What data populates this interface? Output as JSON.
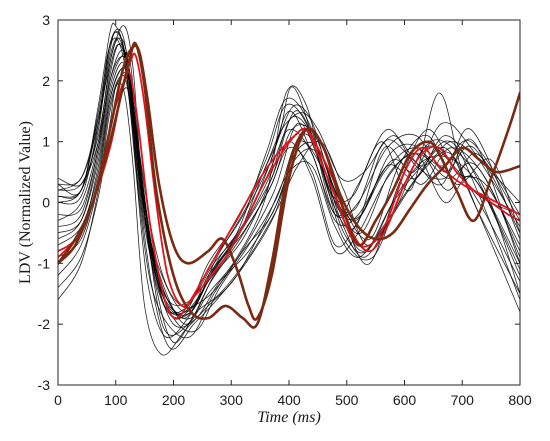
{
  "chart_data": {
    "type": "line",
    "title": "",
    "xlabel": "Time (ms)",
    "ylabel": "LDV (Normalized Value)",
    "xlim": [
      0,
      800
    ],
    "ylim": [
      -3,
      3
    ],
    "xticks": [
      0,
      100,
      200,
      300,
      400,
      500,
      600,
      700,
      800
    ],
    "yticks": [
      -3,
      -2,
      -1,
      0,
      1,
      2,
      3
    ],
    "grid": false,
    "legend": "none",
    "colors": {
      "background_traces": "#000000",
      "highlight_red": "#e0141c",
      "highlight_brown": "#7a2a12"
    },
    "series": [
      {
        "style": "black",
        "x": [
          0,
          40,
          70,
          90,
          110,
          125,
          140,
          160,
          190,
          230,
          270,
          320,
          370,
          400,
          440,
          480,
          520,
          580,
          630,
          680,
          740,
          800
        ],
        "y": [
          0.1,
          0.2,
          1.2,
          2.6,
          2.8,
          2.0,
          0.6,
          -0.8,
          -1.7,
          -1.8,
          -1.1,
          -0.4,
          0.6,
          1.2,
          0.8,
          -0.3,
          -0.2,
          0.7,
          0.3,
          0.9,
          0.4,
          -0.9
        ]
      },
      {
        "style": "black",
        "x": [
          0,
          40,
          70,
          90,
          105,
          120,
          135,
          160,
          190,
          230,
          270,
          320,
          370,
          410,
          450,
          490,
          540,
          590,
          640,
          690,
          750,
          800
        ],
        "y": [
          -0.3,
          0.0,
          1.0,
          2.3,
          2.7,
          2.4,
          1.0,
          -0.6,
          -1.6,
          -1.9,
          -1.2,
          -0.6,
          0.4,
          1.5,
          0.9,
          0.0,
          -0.6,
          0.6,
          1.1,
          0.3,
          0.7,
          -0.5
        ]
      },
      {
        "style": "black",
        "x": [
          0,
          40,
          70,
          95,
          115,
          130,
          145,
          170,
          200,
          240,
          280,
          330,
          380,
          405,
          440,
          480,
          520,
          570,
          620,
          670,
          720,
          800
        ],
        "y": [
          0.3,
          0.4,
          1.4,
          2.5,
          2.9,
          2.2,
          0.4,
          -1.1,
          -1.9,
          -1.6,
          -0.9,
          -0.2,
          1.0,
          1.9,
          1.1,
          -0.2,
          0.3,
          1.2,
          0.6,
          0.4,
          1.0,
          -1.0
        ]
      },
      {
        "style": "black",
        "x": [
          0,
          40,
          70,
          90,
          110,
          125,
          140,
          165,
          195,
          235,
          275,
          325,
          375,
          415,
          455,
          495,
          545,
          595,
          645,
          695,
          745,
          800
        ],
        "y": [
          -0.6,
          -0.3,
          0.8,
          1.9,
          2.4,
          2.3,
          0.9,
          -0.9,
          -1.8,
          -1.7,
          -1.4,
          -0.7,
          0.2,
          1.3,
          0.6,
          -0.6,
          -0.9,
          0.2,
          1.0,
          0.8,
          0.1,
          -1.5
        ]
      },
      {
        "style": "black",
        "x": [
          0,
          40,
          70,
          90,
          100,
          115,
          130,
          150,
          180,
          220,
          260,
          310,
          360,
          395,
          430,
          470,
          510,
          560,
          610,
          660,
          710,
          800
        ],
        "y": [
          0.3,
          0.2,
          1.6,
          2.8,
          2.9,
          2.5,
          1.6,
          -0.2,
          -1.3,
          -2.0,
          -1.5,
          -0.9,
          0.1,
          1.8,
          1.6,
          0.2,
          0.1,
          1.0,
          0.2,
          1.8,
          0.3,
          -0.2
        ]
      },
      {
        "style": "black",
        "x": [
          0,
          40,
          70,
          90,
          110,
          120,
          135,
          155,
          185,
          225,
          265,
          315,
          365,
          400,
          440,
          480,
          520,
          570,
          620,
          670,
          720,
          800
        ],
        "y": [
          -0.8,
          -0.5,
          0.6,
          1.7,
          2.2,
          2.0,
          0.5,
          -1.3,
          -2.2,
          -1.9,
          -1.2,
          -0.5,
          0.3,
          1.0,
          0.4,
          -0.8,
          -0.5,
          0.4,
          0.8,
          0.0,
          0.4,
          -1.2
        ]
      },
      {
        "style": "black",
        "x": [
          0,
          40,
          70,
          90,
          105,
          120,
          140,
          165,
          195,
          235,
          275,
          325,
          375,
          410,
          450,
          490,
          530,
          580,
          630,
          680,
          730,
          800
        ],
        "y": [
          -1.2,
          -0.7,
          0.3,
          1.5,
          2.0,
          1.9,
          0.2,
          -1.5,
          -2.4,
          -2.0,
          -1.6,
          -1.0,
          -0.2,
          0.8,
          0.9,
          -0.2,
          -0.8,
          0.0,
          0.6,
          1.0,
          0.1,
          -1.6
        ]
      },
      {
        "style": "black",
        "x": [
          0,
          40,
          70,
          85,
          100,
          115,
          130,
          150,
          180,
          220,
          260,
          310,
          360,
          395,
          435,
          475,
          515,
          565,
          615,
          665,
          715,
          800
        ],
        "y": [
          0.0,
          0.1,
          1.3,
          2.4,
          2.7,
          2.3,
          1.2,
          -0.4,
          -1.5,
          -1.8,
          -1.0,
          -0.3,
          0.7,
          1.6,
          1.2,
          0.0,
          -0.4,
          0.9,
          0.5,
          1.3,
          0.9,
          -0.4
        ]
      },
      {
        "style": "black",
        "x": [
          0,
          40,
          70,
          90,
          110,
          125,
          145,
          170,
          200,
          240,
          280,
          330,
          380,
          420,
          460,
          500,
          540,
          590,
          640,
          690,
          740,
          800
        ],
        "y": [
          -0.4,
          -0.2,
          0.9,
          2.0,
          2.5,
          2.1,
          0.3,
          -1.2,
          -2.0,
          -1.9,
          -1.3,
          -0.8,
          0.0,
          1.1,
          0.7,
          -0.4,
          -1.0,
          0.3,
          1.2,
          0.5,
          0.3,
          -0.7
        ]
      },
      {
        "style": "black",
        "x": [
          0,
          40,
          70,
          90,
          105,
          120,
          135,
          160,
          190,
          230,
          270,
          320,
          370,
          405,
          445,
          485,
          525,
          575,
          625,
          675,
          725,
          800
        ],
        "y": [
          0.2,
          0.3,
          1.1,
          2.2,
          2.6,
          2.2,
          0.8,
          -0.7,
          -1.6,
          -1.6,
          -1.0,
          -0.4,
          0.5,
          1.4,
          1.0,
          -0.1,
          -0.2,
          0.8,
          0.9,
          0.2,
          0.8,
          -0.3
        ]
      },
      {
        "style": "black",
        "x": [
          0,
          40,
          70,
          90,
          110,
          125,
          140,
          160,
          185,
          225,
          265,
          315,
          365,
          400,
          440,
          480,
          520,
          570,
          620,
          670,
          720,
          800
        ],
        "y": [
          -0.5,
          -0.3,
          0.7,
          1.8,
          2.3,
          2.0,
          0.7,
          -0.9,
          -2.1,
          -2.0,
          -1.3,
          -0.6,
          0.2,
          0.9,
          0.5,
          -0.7,
          -0.3,
          0.6,
          0.4,
          1.1,
          0.5,
          -1.1
        ]
      },
      {
        "style": "black",
        "x": [
          0,
          40,
          70,
          90,
          105,
          115,
          130,
          150,
          180,
          220,
          260,
          310,
          360,
          395,
          435,
          475,
          515,
          565,
          615,
          665,
          715,
          800
        ],
        "y": [
          0.1,
          0.2,
          1.5,
          2.6,
          2.8,
          2.4,
          1.3,
          -0.3,
          -1.4,
          -1.9,
          -1.2,
          -0.5,
          0.8,
          1.7,
          1.3,
          0.1,
          -0.1,
          1.0,
          0.7,
          0.3,
          1.2,
          -0.6
        ]
      },
      {
        "style": "black",
        "x": [
          0,
          40,
          70,
          90,
          110,
          125,
          145,
          170,
          200,
          240,
          280,
          330,
          380,
          415,
          455,
          495,
          535,
          585,
          635,
          685,
          735,
          800
        ],
        "y": [
          -0.9,
          -0.6,
          0.4,
          1.6,
          2.1,
          1.9,
          0.2,
          -1.4,
          -2.3,
          -1.8,
          -1.5,
          -0.9,
          -0.1,
          0.6,
          1.0,
          0.2,
          -0.7,
          -0.1,
          0.9,
          0.6,
          -0.1,
          -1.3
        ]
      },
      {
        "style": "black",
        "x": [
          0,
          40,
          70,
          90,
          100,
          115,
          130,
          150,
          180,
          220,
          260,
          310,
          360,
          400,
          440,
          480,
          520,
          570,
          620,
          670,
          720,
          800
        ],
        "y": [
          -1.6,
          -1.0,
          0.2,
          1.3,
          1.9,
          1.8,
          0.6,
          -1.7,
          -2.5,
          -2.1,
          -1.7,
          -1.2,
          -0.3,
          0.5,
          0.6,
          -0.4,
          -0.9,
          -0.3,
          0.4,
          0.9,
          0.0,
          -1.8
        ]
      },
      {
        "style": "black",
        "x": [
          0,
          40,
          70,
          90,
          105,
          120,
          140,
          165,
          195,
          235,
          275,
          325,
          375,
          410,
          450,
          490,
          530,
          580,
          630,
          680,
          730,
          800
        ],
        "y": [
          0.4,
          0.3,
          1.0,
          2.1,
          2.6,
          2.3,
          0.9,
          -0.6,
          -1.5,
          -1.7,
          -0.9,
          -0.1,
          0.9,
          1.6,
          1.2,
          0.4,
          0.5,
          1.1,
          0.6,
          1.0,
          0.7,
          0.0
        ]
      },
      {
        "style": "black",
        "x": [
          0,
          40,
          70,
          90,
          110,
          125,
          140,
          160,
          190,
          230,
          270,
          320,
          370,
          405,
          445,
          485,
          525,
          575,
          625,
          675,
          725,
          800
        ],
        "y": [
          -0.2,
          -0.1,
          0.9,
          2.0,
          2.4,
          2.1,
          0.7,
          -0.9,
          -1.8,
          -1.8,
          -1.1,
          -0.5,
          0.3,
          1.2,
          1.1,
          0.0,
          -0.5,
          0.5,
          0.8,
          0.4,
          0.6,
          -0.8
        ]
      },
      {
        "style": "black",
        "x": [
          0,
          40,
          70,
          90,
          105,
          120,
          135,
          155,
          185,
          225,
          265,
          315,
          365,
          400,
          440,
          480,
          520,
          570,
          620,
          670,
          720,
          800
        ],
        "y": [
          0.2,
          0.4,
          1.3,
          2.4,
          2.7,
          2.2,
          1.0,
          -0.5,
          -1.7,
          -1.7,
          -1.0,
          -0.3,
          0.6,
          1.5,
          0.8,
          -0.2,
          0.0,
          0.9,
          1.1,
          0.5,
          0.9,
          -0.5
        ]
      },
      {
        "style": "black",
        "x": [
          0,
          40,
          70,
          90,
          110,
          125,
          140,
          160,
          190,
          230,
          270,
          320,
          370,
          410,
          450,
          490,
          530,
          580,
          630,
          680,
          730,
          800
        ],
        "y": [
          -1.4,
          -0.9,
          0.1,
          1.2,
          1.8,
          1.7,
          0.1,
          -1.3,
          -2.0,
          -2.2,
          -1.5,
          -0.8,
          -0.2,
          0.7,
          0.8,
          -0.3,
          -0.9,
          -0.2,
          0.5,
          0.8,
          -0.2,
          -1.5
        ]
      },
      {
        "style": "black",
        "x": [
          0,
          40,
          70,
          90,
          100,
          115,
          130,
          150,
          180,
          220,
          260,
          310,
          360,
          395,
          435,
          475,
          515,
          565,
          615,
          665,
          715,
          800
        ],
        "y": [
          0.0,
          0.2,
          1.4,
          2.5,
          2.8,
          2.5,
          1.4,
          -0.2,
          -1.2,
          -1.8,
          -1.3,
          -0.6,
          0.6,
          1.3,
          1.4,
          0.3,
          -0.3,
          0.5,
          0.9,
          0.6,
          1.0,
          -0.2
        ]
      },
      {
        "style": "black",
        "x": [
          0,
          40,
          70,
          90,
          110,
          125,
          145,
          170,
          200,
          240,
          280,
          330,
          380,
          415,
          455,
          495,
          535,
          585,
          635,
          685,
          735,
          800
        ],
        "y": [
          -0.7,
          -0.4,
          0.5,
          1.7,
          2.2,
          2.0,
          0.4,
          -1.1,
          -1.9,
          -2.1,
          -1.4,
          -0.7,
          0.1,
          1.0,
          0.6,
          -0.5,
          -0.8,
          0.1,
          0.7,
          0.7,
          0.2,
          -1.0
        ]
      },
      {
        "style": "red",
        "x": [
          0,
          30,
          60,
          85,
          100,
          115,
          125,
          140,
          160,
          185,
          205,
          230,
          260,
          290,
          320,
          350,
          380,
          410,
          430,
          450,
          480,
          510,
          540,
          570,
          600,
          630,
          660,
          700,
          740,
          780,
          800
        ],
        "y": [
          -0.8,
          -0.6,
          0.0,
          1.0,
          1.6,
          2.0,
          2.1,
          1.2,
          -0.4,
          -1.6,
          -1.9,
          -1.6,
          -1.1,
          -0.6,
          -0.1,
          0.4,
          0.8,
          1.1,
          1.2,
          0.8,
          0.1,
          -0.6,
          -0.7,
          -0.3,
          0.5,
          0.9,
          0.6,
          0.3,
          0.1,
          -0.1,
          -0.2
        ]
      },
      {
        "style": "red",
        "x": [
          0,
          30,
          60,
          90,
          110,
          125,
          135,
          150,
          170,
          190,
          215,
          240,
          265,
          290,
          320,
          350,
          380,
          410,
          430,
          450,
          480,
          510,
          540,
          570,
          600,
          630,
          660,
          690,
          720,
          750,
          780,
          800
        ],
        "y": [
          -0.9,
          -0.6,
          0.0,
          0.9,
          1.8,
          2.3,
          2.4,
          1.6,
          0.0,
          -1.2,
          -1.7,
          -1.5,
          -1.2,
          -0.9,
          -0.4,
          0.2,
          0.7,
          1.1,
          1.2,
          0.9,
          0.3,
          -0.5,
          -0.8,
          -0.4,
          0.3,
          0.8,
          0.9,
          0.5,
          0.2,
          0.0,
          -0.2,
          -0.3
        ]
      },
      {
        "style": "brown",
        "x": [
          0,
          30,
          60,
          90,
          110,
          125,
          140,
          155,
          175,
          200,
          225,
          260,
          285,
          310,
          330,
          345,
          370,
          400,
          430,
          460,
          490,
          520,
          550,
          580,
          610,
          640,
          670,
          700,
          730,
          760,
          800
        ],
        "y": [
          -1.0,
          -0.6,
          0.0,
          1.2,
          2.1,
          2.5,
          2.5,
          1.7,
          0.3,
          -0.7,
          -1.0,
          -0.8,
          -0.6,
          -1.1,
          -1.7,
          -1.9,
          -1.2,
          0.4,
          1.2,
          0.9,
          0.1,
          -0.4,
          -0.6,
          -0.5,
          -0.1,
          0.3,
          0.6,
          0.9,
          0.7,
          0.5,
          0.6
        ]
      },
      {
        "style": "brown",
        "x": [
          0,
          30,
          60,
          90,
          110,
          125,
          135,
          150,
          170,
          200,
          230,
          260,
          290,
          320,
          345,
          370,
          400,
          430,
          460,
          490,
          520,
          550,
          580,
          610,
          640,
          660,
          690,
          720,
          750,
          780,
          800
        ],
        "y": [
          -1.0,
          -0.7,
          0.0,
          1.0,
          1.8,
          2.4,
          2.6,
          1.9,
          0.2,
          -1.2,
          -1.8,
          -1.9,
          -1.7,
          -1.9,
          -2.0,
          -1.0,
          0.6,
          1.2,
          0.9,
          0.0,
          -0.7,
          -0.3,
          0.2,
          0.8,
          1.0,
          0.8,
          0.2,
          -0.3,
          0.4,
          1.2,
          1.8
        ]
      }
    ]
  }
}
